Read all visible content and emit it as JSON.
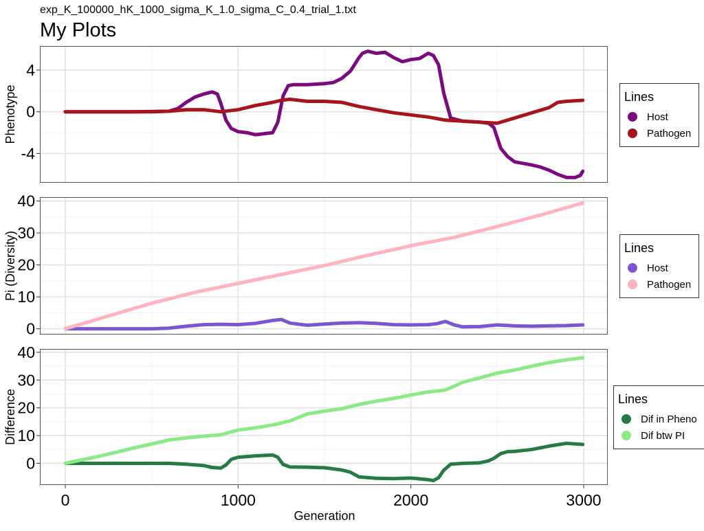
{
  "header": {
    "subtitle": "exp_K_100000_hK_1000_sigma_K_1.0_sigma_C_0.4_trial_1.txt",
    "title": "My Plots"
  },
  "xlabel": "Generation",
  "x_ticks": [
    0,
    1000,
    2000,
    3000
  ],
  "chart_data": [
    {
      "type": "line",
      "ylabel": "Phenotype",
      "xlim": [
        0,
        3000
      ],
      "ylim": [
        -6.8,
        6.3
      ],
      "y_ticks": [
        4,
        0,
        -4
      ],
      "y_tick_labels": [
        "4",
        "0",
        "-4"
      ],
      "grid": true,
      "legend": {
        "title": "Lines",
        "placement": "right"
      },
      "series": [
        {
          "name": "Host",
          "color": "#7B0A7F",
          "x": [
            0,
            100,
            200,
            300,
            400,
            500,
            600,
            650,
            700,
            750,
            800,
            850,
            880,
            900,
            930,
            960,
            1000,
            1050,
            1100,
            1150,
            1200,
            1230,
            1260,
            1290,
            1320,
            1400,
            1500,
            1550,
            1600,
            1650,
            1700,
            1720,
            1750,
            1800,
            1850,
            1900,
            1950,
            2000,
            2050,
            2100,
            2130,
            2160,
            2190,
            2230,
            2300,
            2400,
            2450,
            2480,
            2520,
            2560,
            2600,
            2700,
            2750,
            2800,
            2850,
            2900,
            2950,
            2980,
            2995
          ],
          "y": [
            0.0,
            0.0,
            0.0,
            0.0,
            0.0,
            0.0,
            0.05,
            0.3,
            0.9,
            1.4,
            1.7,
            1.9,
            1.7,
            0.8,
            -0.8,
            -1.6,
            -1.9,
            -2.0,
            -2.2,
            -2.1,
            -2.0,
            -1.0,
            1.5,
            2.5,
            2.6,
            2.6,
            2.7,
            2.8,
            3.2,
            3.9,
            5.2,
            5.6,
            5.8,
            5.6,
            5.7,
            5.2,
            4.8,
            5.0,
            5.1,
            5.6,
            5.4,
            4.5,
            1.8,
            -0.6,
            -0.9,
            -1.0,
            -1.1,
            -1.5,
            -3.5,
            -4.3,
            -4.8,
            -5.1,
            -5.3,
            -5.6,
            -6.0,
            -6.3,
            -6.3,
            -6.1,
            -5.7
          ]
        },
        {
          "name": "Pathogen",
          "color": "#A8131C",
          "x": [
            0,
            200,
            400,
            600,
            700,
            800,
            900,
            1000,
            1100,
            1200,
            1250,
            1300,
            1400,
            1500,
            1600,
            1700,
            1800,
            1900,
            2000,
            2100,
            2200,
            2300,
            2400,
            2500,
            2600,
            2700,
            2800,
            2850,
            2900,
            2995
          ],
          "y": [
            0.0,
            0.0,
            0.0,
            0.05,
            0.2,
            0.2,
            0.0,
            0.2,
            0.6,
            0.9,
            1.1,
            1.2,
            1.0,
            1.0,
            0.9,
            0.5,
            0.2,
            -0.1,
            -0.3,
            -0.5,
            -0.8,
            -0.9,
            -1.0,
            -1.1,
            -0.6,
            -0.1,
            0.4,
            0.9,
            1.0,
            1.1
          ]
        }
      ]
    },
    {
      "type": "line",
      "ylabel": "Pi (Diversity)",
      "xlim": [
        0,
        3000
      ],
      "ylim": [
        -1.8,
        41.2
      ],
      "y_ticks": [
        40,
        30,
        20,
        10,
        0
      ],
      "y_tick_labels": [
        "40",
        "30",
        "20",
        "10",
        "0"
      ],
      "grid": true,
      "legend": {
        "title": "Lines",
        "placement": "right"
      },
      "series": [
        {
          "name": "Host",
          "color": "#7A57D1",
          "x": [
            0,
            100,
            200,
            300,
            400,
            500,
            600,
            700,
            800,
            900,
            1000,
            1100,
            1200,
            1250,
            1300,
            1400,
            1500,
            1600,
            1700,
            1800,
            1900,
            2000,
            2100,
            2150,
            2200,
            2250,
            2300,
            2400,
            2500,
            2600,
            2700,
            2800,
            2900,
            2995
          ],
          "y": [
            0.0,
            0.0,
            0.0,
            0.0,
            0.0,
            0.0,
            0.2,
            0.8,
            1.3,
            1.4,
            1.3,
            1.7,
            2.6,
            2.9,
            1.8,
            1.1,
            1.5,
            1.8,
            1.9,
            1.7,
            1.3,
            1.2,
            1.3,
            1.6,
            2.3,
            1.2,
            0.6,
            0.7,
            1.2,
            0.9,
            0.8,
            0.9,
            1.0,
            1.2
          ]
        },
        {
          "name": "Pathogen",
          "color": "#FFB3C1",
          "x": [
            0,
            250,
            500,
            750,
            1000,
            1250,
            1500,
            1750,
            2000,
            2250,
            2500,
            2750,
            2995
          ],
          "y": [
            0.0,
            4.0,
            8.0,
            11.4,
            14.2,
            17.0,
            19.8,
            23.0,
            26.0,
            28.6,
            32.0,
            35.6,
            39.4
          ]
        }
      ]
    },
    {
      "type": "line",
      "ylabel": "Difference",
      "xlim": [
        0,
        3000
      ],
      "ylim": [
        -7.8,
        41.2
      ],
      "y_ticks": [
        40,
        30,
        20,
        10,
        0
      ],
      "y_tick_labels": [
        "40",
        "30",
        "20",
        "10",
        "0"
      ],
      "grid": true,
      "legend": {
        "title": "Lines",
        "placement": "right"
      },
      "series": [
        {
          "name": "Dif in Pheno",
          "color": "#267B45",
          "x": [
            0,
            200,
            400,
            600,
            700,
            800,
            850,
            900,
            930,
            960,
            1000,
            1100,
            1200,
            1230,
            1260,
            1300,
            1400,
            1500,
            1600,
            1650,
            1700,
            1800,
            1900,
            2000,
            2100,
            2130,
            2160,
            2190,
            2230,
            2300,
            2400,
            2450,
            2480,
            2520,
            2560,
            2600,
            2700,
            2800,
            2900,
            2995
          ],
          "y": [
            0.0,
            0.0,
            0.0,
            0.0,
            -0.3,
            -0.8,
            -1.5,
            -1.7,
            -0.6,
            1.4,
            2.2,
            2.7,
            3.0,
            2.2,
            -0.4,
            -1.3,
            -1.4,
            -1.6,
            -2.4,
            -3.2,
            -4.9,
            -5.4,
            -5.5,
            -5.3,
            -5.9,
            -6.2,
            -5.2,
            -2.5,
            -0.3,
            0.0,
            0.2,
            0.9,
            1.8,
            3.5,
            4.2,
            4.3,
            5.0,
            6.2,
            7.2,
            6.8
          ]
        },
        {
          "name": "Dif btw PI",
          "color": "#8AEB85",
          "x": [
            0,
            200,
            400,
            600,
            750,
            900,
            1000,
            1100,
            1200,
            1300,
            1400,
            1500,
            1600,
            1700,
            1800,
            1900,
            2000,
            2100,
            2200,
            2300,
            2400,
            2500,
            2600,
            2700,
            2800,
            2900,
            2995
          ],
          "y": [
            0.0,
            2.6,
            5.6,
            8.4,
            9.5,
            10.3,
            12.0,
            12.8,
            13.8,
            15.3,
            17.8,
            18.8,
            19.7,
            21.2,
            22.4,
            23.4,
            24.6,
            25.7,
            26.4,
            29.2,
            30.8,
            32.5,
            33.6,
            35.0,
            36.3,
            37.3,
            38.0
          ]
        }
      ]
    }
  ]
}
